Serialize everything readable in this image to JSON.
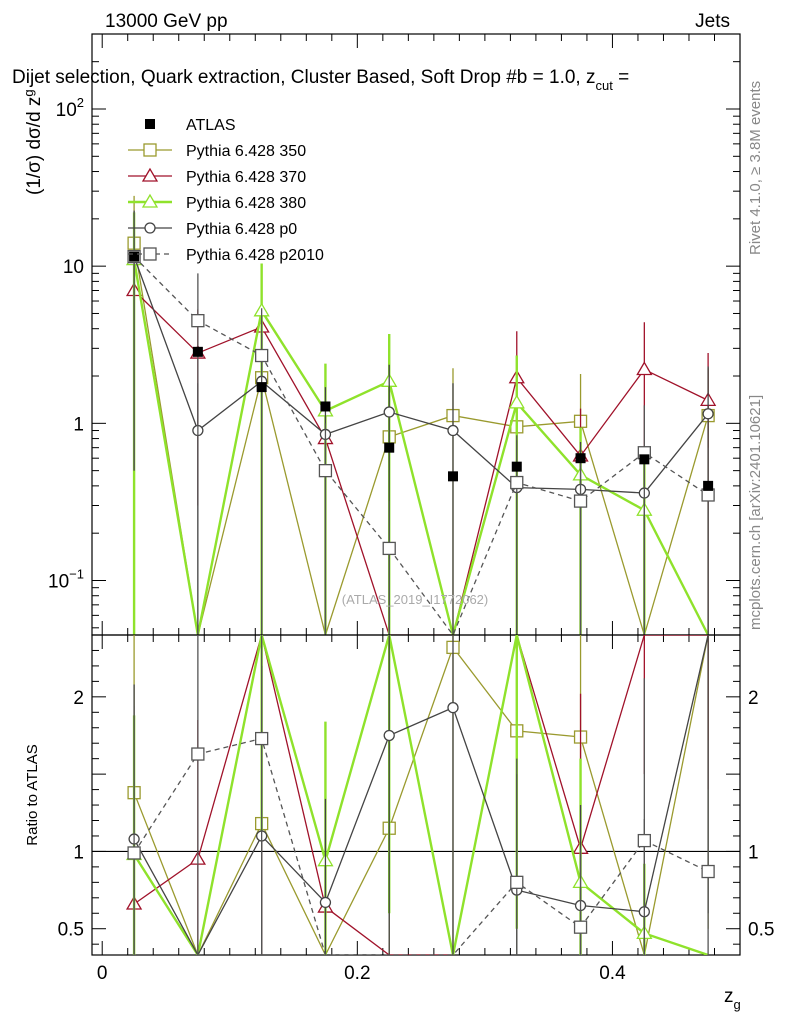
{
  "header": {
    "energy": "13000 GeV pp",
    "category": "Jets",
    "plot_title": "Dijet selection, Quark extraction, Cluster Based, Soft Drop #b = 1.0, z",
    "plot_title_sub": "cut",
    "plot_title_tail": " ="
  },
  "side_labels": {
    "rivet": "Rivet 4.1.0, ≥ 3.8M events",
    "mcplots": "mcplots.cern.ch [arXiv:2401.10621]"
  },
  "watermark": "(ATLAS_2019_I1772062)",
  "chart_data": {
    "type": "scatter",
    "x": [
      0.025,
      0.075,
      0.125,
      0.175,
      0.225,
      0.275,
      0.325,
      0.375,
      0.425,
      0.475
    ],
    "main": {
      "ylabel": "(1/σ) dσ/d z",
      "ylabel_sub": "g",
      "yscale": "log",
      "ylim": [
        0.045,
        300
      ],
      "yticks": [
        {
          "value": 0.1,
          "mant": "10",
          "exp": "−1"
        },
        {
          "value": 1,
          "mant": "1",
          "exp": ""
        },
        {
          "value": 10,
          "mant": "10",
          "exp": ""
        },
        {
          "value": 100,
          "mant": "10",
          "exp": "2"
        }
      ]
    },
    "ratio": {
      "ylabel": "Ratio to ATLAS",
      "ylim": [
        0.33,
        2.4
      ],
      "yticks": [
        {
          "value": 0.5,
          "label": "0.5"
        },
        {
          "value": 1,
          "label": "1"
        },
        {
          "value": 2,
          "label": "2"
        }
      ]
    },
    "xaxis": {
      "label": "z",
      "label_sub": "g",
      "xlim": [
        -0.008,
        0.5
      ],
      "ticks": [
        {
          "value": 0,
          "label": "0"
        },
        {
          "value": 0.2,
          "label": "0.2"
        },
        {
          "value": 0.4,
          "label": "0.4"
        }
      ]
    },
    "series": [
      {
        "name": "ATLAS",
        "color": "#000000",
        "marker": "square-filled",
        "dash": false,
        "line": false,
        "values": [
          11.5,
          2.85,
          1.7,
          1.28,
          0.7,
          0.46,
          0.53,
          0.6,
          0.59,
          0.4
        ],
        "err": [
          0,
          0,
          0,
          0,
          0,
          0,
          0,
          0,
          0,
          0
        ],
        "ratio": [
          1,
          1,
          1,
          1,
          1,
          1,
          1,
          1,
          1,
          1
        ],
        "ratio_err": [
          0,
          0,
          0,
          0,
          0,
          0,
          0,
          0,
          0,
          0
        ]
      },
      {
        "name": "Pythia 6.428 350",
        "color": "#9a9a2e",
        "marker": "square-open",
        "dash": false,
        "line": true,
        "values": [
          14,
          0.01,
          1.95,
          0.01,
          0.82,
          1.12,
          0.95,
          1.03,
          0.01,
          1.12
        ],
        "err": [
          14,
          0,
          1.95,
          0,
          0.82,
          1.12,
          0.95,
          1.03,
          0,
          1.12
        ],
        "ratio": [
          1.38,
          0.01,
          1.18,
          0.01,
          1.15,
          2.32,
          1.78,
          1.74,
          0.01,
          2.5
        ],
        "ratio_err": [
          1.2,
          0,
          1.2,
          0,
          1.2,
          2.2,
          1.7,
          1.7,
          0,
          2
        ]
      },
      {
        "name": "Pythia 6.428 370",
        "color": "#a0122a",
        "marker": "triangle-open",
        "dash": false,
        "line": true,
        "values": [
          7,
          2.8,
          4.1,
          0.8,
          0.01,
          0.01,
          1.95,
          0.62,
          2.2,
          1.4
        ],
        "err": [
          7,
          2.5,
          4.1,
          0.8,
          0,
          0,
          1.9,
          0.62,
          2.2,
          1.4
        ],
        "ratio": [
          0.66,
          0.95,
          2.45,
          0.64,
          0.01,
          0.01,
          3.2,
          1.02,
          3.5,
          3.4
        ],
        "ratio_err": [
          0.6,
          0.9,
          2.4,
          0.6,
          0,
          0,
          2,
          1,
          2,
          2
        ]
      },
      {
        "name": "Pythia 6.428 380",
        "color": "#8fe22b",
        "marker": "triangle-open",
        "dash": false,
        "line": true,
        "values": [
          11,
          0.01,
          5.2,
          1.2,
          1.85,
          0.01,
          1.35,
          0.47,
          0.28,
          0.01
        ],
        "err": [
          11,
          0,
          5.2,
          1.2,
          1.85,
          0,
          1.35,
          0.47,
          0.28,
          0
        ],
        "ratio": [
          0.98,
          0.01,
          3.1,
          0.94,
          2.6,
          0.01,
          2.5,
          0.8,
          0.47,
          0.01
        ],
        "ratio_err": [
          0.9,
          0,
          2,
          0.9,
          2,
          0,
          2,
          0.8,
          0.45,
          0
        ]
      },
      {
        "name": "Pythia 6.428 p0",
        "color": "#444444",
        "marker": "circle-open",
        "dash": false,
        "line": true,
        "values": [
          11.5,
          0.9,
          1.85,
          0.85,
          1.18,
          0.9,
          0.39,
          0.38,
          0.36,
          1.15
        ],
        "err": [
          11,
          0.9,
          1.85,
          0.85,
          1.18,
          0.9,
          0.39,
          0.38,
          0.36,
          1.15
        ],
        "ratio": [
          1.08,
          0.01,
          1.1,
          0.67,
          1.75,
          1.93,
          0.75,
          0.65,
          0.61,
          2.6
        ],
        "ratio_err": [
          1,
          0,
          1.1,
          0.67,
          1.7,
          1.9,
          0.75,
          0.65,
          0.6,
          2
        ]
      },
      {
        "name": "Pythia 6.428 p2010",
        "color": "#555555",
        "marker": "square-open",
        "dash": true,
        "line": true,
        "values": [
          11.5,
          4.5,
          2.7,
          0.5,
          0.16,
          0.01,
          0.42,
          0.32,
          0.65,
          0.35
        ],
        "err": [
          11,
          4.5,
          2.7,
          0.5,
          0.16,
          0,
          0.42,
          0.32,
          0.65,
          0.35
        ],
        "ratio": [
          0.99,
          1.63,
          1.73,
          0.01,
          0.01,
          0.01,
          0.8,
          0.51,
          1.07,
          0.87
        ],
        "ratio_err": [
          0.95,
          1.6,
          1.6,
          0,
          0,
          0,
          0.8,
          0.5,
          1.05,
          0.85
        ]
      }
    ]
  }
}
